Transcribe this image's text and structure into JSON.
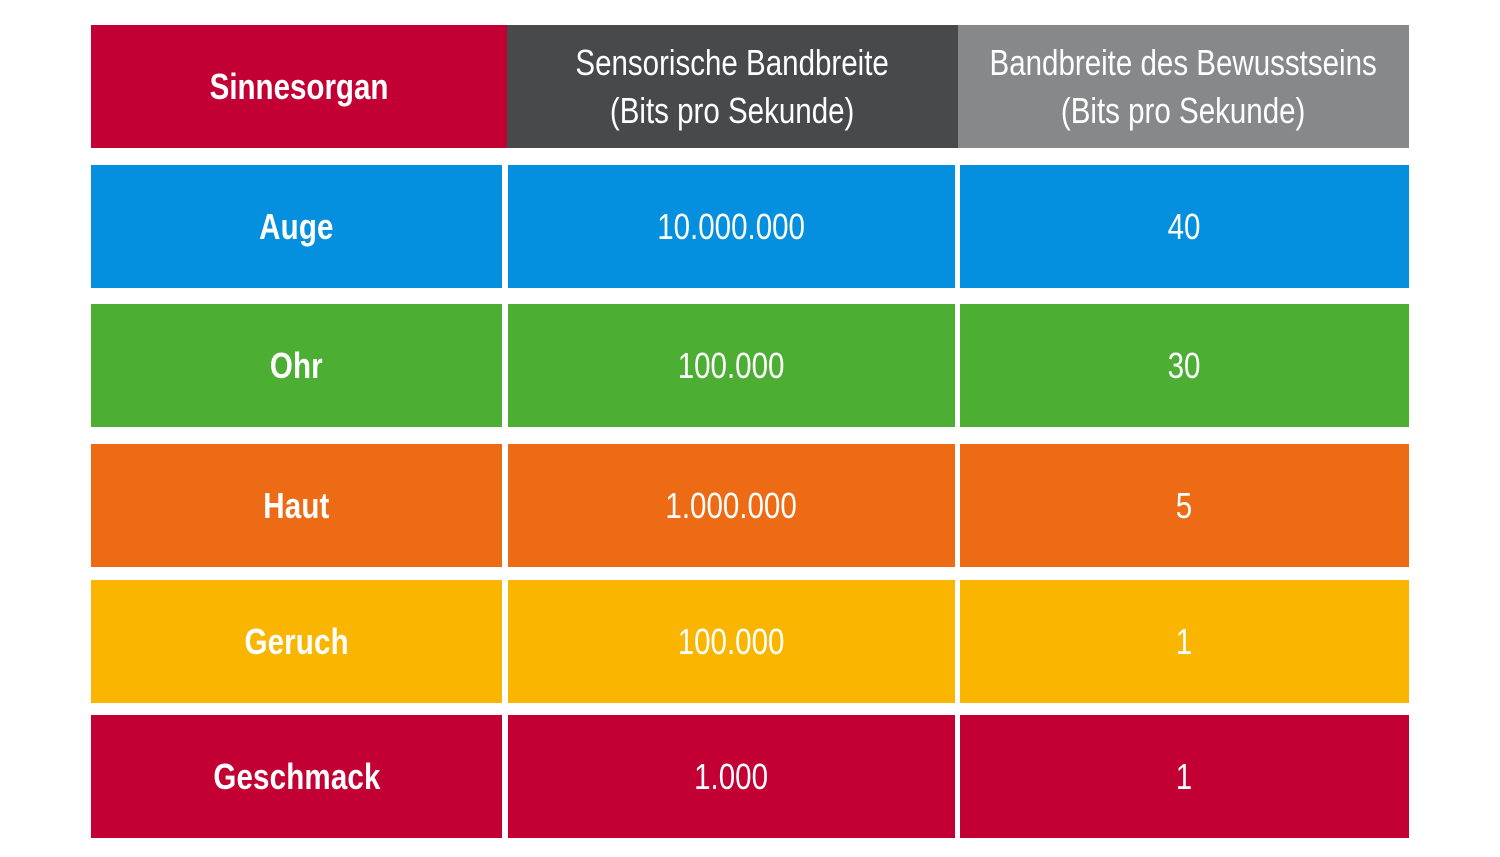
{
  "colors": {
    "header_red": "#c30033",
    "header_dark": "#48494b",
    "header_grey": "#878889",
    "blue": "#0590df",
    "green": "#4caf34",
    "orange": "#ec6b14",
    "yellow": "#f9b500",
    "red": "#c30033"
  },
  "header": {
    "col1": "Sinnesorgan",
    "col2_line1": "Sensorische Bandbreite",
    "col2_line2": "(Bits pro Sekunde)",
    "col3_line1": "Bandbreite des Bewusstseins",
    "col3_line2": "(Bits pro Sekunde)"
  },
  "rows": [
    {
      "organ": "Auge",
      "sensory": "10.000.000",
      "conscious": "40",
      "color": "#0590df"
    },
    {
      "organ": "Ohr",
      "sensory": "100.000",
      "conscious": "30",
      "color": "#4caf34"
    },
    {
      "organ": "Haut",
      "sensory": "1.000.000",
      "conscious": "5",
      "color": "#ec6b14"
    },
    {
      "organ": "Geruch",
      "sensory": "100.000",
      "conscious": "1",
      "color": "#f9b500"
    },
    {
      "organ": "Geschmack",
      "sensory": "1.000",
      "conscious": "1",
      "color": "#c30033"
    }
  ]
}
